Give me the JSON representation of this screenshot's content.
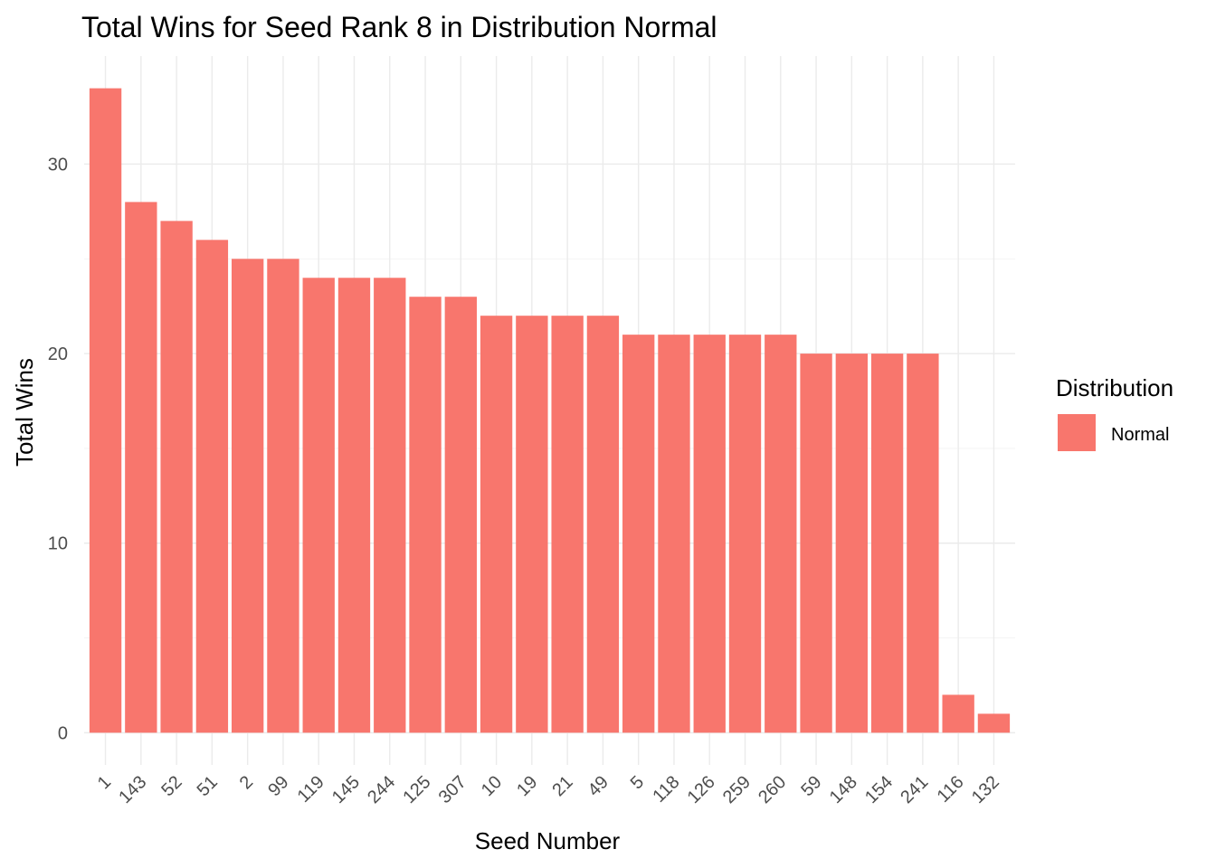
{
  "chart_data": {
    "type": "bar",
    "title": "Total Wins for Seed Rank 8 in Distribution Normal",
    "xlabel": "Seed Number",
    "ylabel": "Total Wins",
    "categories": [
      "1",
      "143",
      "52",
      "51",
      "2",
      "99",
      "119",
      "145",
      "244",
      "125",
      "307",
      "10",
      "19",
      "21",
      "49",
      "5",
      "118",
      "126",
      "259",
      "260",
      "59",
      "148",
      "154",
      "241",
      "116",
      "132"
    ],
    "series": [
      {
        "name": "Normal",
        "values": [
          34,
          28,
          27,
          26,
          25,
          25,
          24,
          24,
          24,
          23,
          23,
          22,
          22,
          22,
          22,
          21,
          21,
          21,
          21,
          21,
          20,
          20,
          20,
          20,
          2,
          1
        ]
      }
    ],
    "yticks": [
      0,
      10,
      20,
      30
    ],
    "ylim": [
      -1.7,
      35.7
    ],
    "grid": true,
    "legend": {
      "title": "Distribution",
      "placement": "right",
      "entries": [
        "Normal"
      ]
    },
    "colors": {
      "Normal": "#F8766D"
    }
  }
}
